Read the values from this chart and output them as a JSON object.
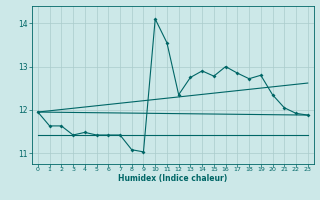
{
  "xlabel": "Humidex (Indice chaleur)",
  "bg_color": "#cce8e8",
  "grid_color": "#aacccc",
  "line_color": "#006666",
  "xlim": [
    -0.5,
    23.5
  ],
  "ylim": [
    10.75,
    14.4
  ],
  "yticks": [
    11,
    12,
    13,
    14
  ],
  "xticks": [
    0,
    1,
    2,
    3,
    4,
    5,
    6,
    7,
    8,
    9,
    10,
    11,
    12,
    13,
    14,
    15,
    16,
    17,
    18,
    19,
    20,
    21,
    22,
    23
  ],
  "series": [
    [
      0,
      11.95
    ],
    [
      1,
      11.63
    ],
    [
      2,
      11.63
    ],
    [
      3,
      11.42
    ],
    [
      4,
      11.48
    ],
    [
      5,
      11.42
    ],
    [
      6,
      11.42
    ],
    [
      7,
      11.42
    ],
    [
      8,
      11.08
    ],
    [
      9,
      11.03
    ],
    [
      10,
      14.1
    ],
    [
      11,
      13.55
    ],
    [
      12,
      12.35
    ],
    [
      13,
      12.75
    ],
    [
      14,
      12.9
    ],
    [
      15,
      12.78
    ],
    [
      16,
      13.0
    ],
    [
      17,
      12.85
    ],
    [
      18,
      12.72
    ],
    [
      19,
      12.8
    ],
    [
      20,
      12.35
    ],
    [
      21,
      12.05
    ],
    [
      22,
      11.92
    ],
    [
      23,
      11.88
    ]
  ],
  "line_flat": [
    [
      0,
      11.95
    ],
    [
      23,
      11.88
    ]
  ],
  "line_rising": [
    [
      0,
      11.95
    ],
    [
      23,
      12.62
    ]
  ],
  "line_min": [
    [
      0,
      11.42
    ],
    [
      22,
      11.42
    ],
    [
      23,
      11.42
    ]
  ]
}
